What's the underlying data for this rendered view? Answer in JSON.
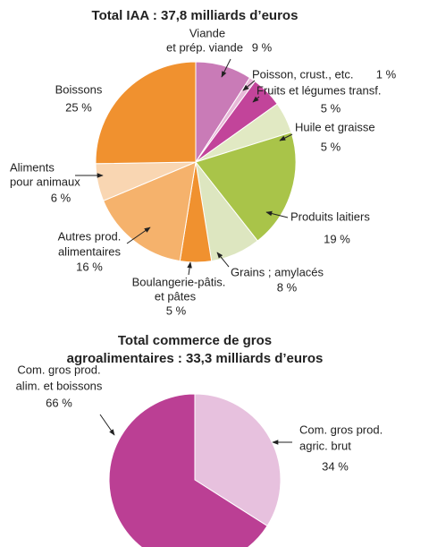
{
  "chart_data": [
    {
      "type": "pie",
      "title": [
        "Total IAA : 37,8 milliards d’euros"
      ],
      "categories": [
        [
          "Viande",
          "et prép. viande"
        ],
        [
          "Poisson, crust., etc."
        ],
        [
          "Fruits et légumes transf."
        ],
        [
          "Huile et graisse"
        ],
        [
          "Produits laitiers"
        ],
        [
          "Grains ; amylacés"
        ],
        [
          "Boulangerie-pâtis.",
          "et pâtes"
        ],
        [
          "Autres prod.",
          "alimentaires"
        ],
        [
          "Aliments",
          "pour animaux"
        ],
        [
          "Boissons"
        ]
      ],
      "values": [
        9,
        1,
        5,
        5,
        19,
        8,
        5,
        16,
        6,
        25
      ],
      "value_labels": [
        "9 %",
        "1 %",
        "5 %",
        "5 %",
        "19 %",
        "8 %",
        "5 %",
        "16 %",
        "6 %",
        "25 %"
      ],
      "colors": [
        "#c97bb7",
        "#e7b9d8",
        "#c2449a",
        "#e1e9c3",
        "#a9c449",
        "#dde6c0",
        "#f0912f",
        "#f5b26c",
        "#f9d6b2",
        "#f0912f"
      ]
    },
    {
      "type": "pie",
      "title": [
        "Total commerce de gros",
        "agroalimentaires : 33,3 milliards d’euros"
      ],
      "categories": [
        [
          "Com. gros prod.",
          "agric. brut"
        ],
        [
          "Com. gros prod.",
          "alim. et boissons"
        ]
      ],
      "values": [
        34,
        66
      ],
      "value_labels": [
        "34 %",
        "66 %"
      ],
      "colors": [
        "#e7c1de",
        "#bb3f94"
      ]
    }
  ]
}
